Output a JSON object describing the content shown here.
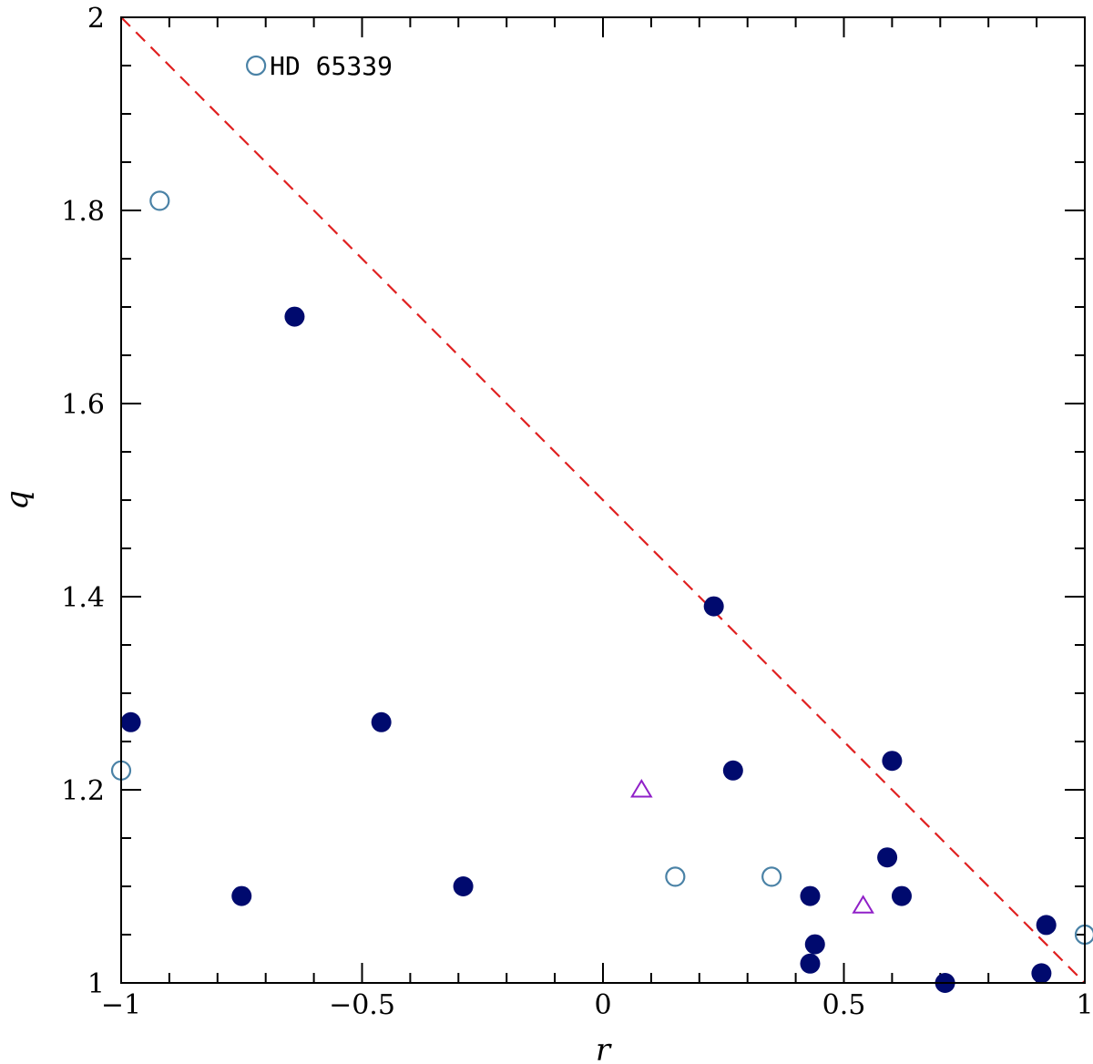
{
  "chart_data": {
    "type": "scatter",
    "title": "",
    "xlabel": "r",
    "ylabel": "q",
    "xlim": [
      -1,
      1
    ],
    "ylim": [
      1,
      2
    ],
    "x_ticks": [
      {
        "value": -1,
        "label": "−1"
      },
      {
        "value": -0.5,
        "label": "−0.5"
      },
      {
        "value": 0,
        "label": "0"
      },
      {
        "value": 0.5,
        "label": "0.5"
      },
      {
        "value": 1,
        "label": "1"
      }
    ],
    "y_ticks": [
      {
        "value": 1,
        "label": "1"
      },
      {
        "value": 1.2,
        "label": "1.2"
      },
      {
        "value": 1.4,
        "label": "1.4"
      },
      {
        "value": 1.6,
        "label": "1.6"
      },
      {
        "value": 1.8,
        "label": "1.8"
      },
      {
        "value": 2,
        "label": "2"
      }
    ],
    "x_minor_step": 0.1,
    "y_minor_step": 0.05,
    "grid": false,
    "reference_line": {
      "x": [
        -1,
        1
      ],
      "y": [
        2,
        1
      ],
      "style": "dashed",
      "color": "#e02020"
    },
    "series": [
      {
        "marker": "filled-circle",
        "color": "#000a6e",
        "points": [
          {
            "x": -0.98,
            "y": 1.27
          },
          {
            "x": -0.75,
            "y": 1.09
          },
          {
            "x": -0.64,
            "y": 1.69
          },
          {
            "x": -0.46,
            "y": 1.27
          },
          {
            "x": -0.29,
            "y": 1.1
          },
          {
            "x": 0.23,
            "y": 1.39
          },
          {
            "x": 0.27,
            "y": 1.22
          },
          {
            "x": 0.43,
            "y": 1.09
          },
          {
            "x": 0.43,
            "y": 1.02
          },
          {
            "x": 0.44,
            "y": 1.04
          },
          {
            "x": 0.59,
            "y": 1.13
          },
          {
            "x": 0.6,
            "y": 1.23
          },
          {
            "x": 0.62,
            "y": 1.09
          },
          {
            "x": 0.71,
            "y": 1.0
          },
          {
            "x": 0.91,
            "y": 1.01
          },
          {
            "x": 0.92,
            "y": 1.06
          }
        ]
      },
      {
        "marker": "open-circle",
        "color": "#4a82a6",
        "points": [
          {
            "x": -1.0,
            "y": 1.22
          },
          {
            "x": -0.92,
            "y": 1.81
          },
          {
            "x": -0.72,
            "y": 1.95
          },
          {
            "x": 0.15,
            "y": 1.11
          },
          {
            "x": 0.35,
            "y": 1.11
          },
          {
            "x": 1.0,
            "y": 1.05
          }
        ]
      },
      {
        "marker": "open-triangle",
        "color": "#9020c8",
        "points": [
          {
            "x": 0.08,
            "y": 1.2
          },
          {
            "x": 0.54,
            "y": 1.08
          }
        ]
      }
    ],
    "annotations": [
      {
        "text": "HD 65339",
        "x": -0.72,
        "y": 1.95
      }
    ]
  }
}
